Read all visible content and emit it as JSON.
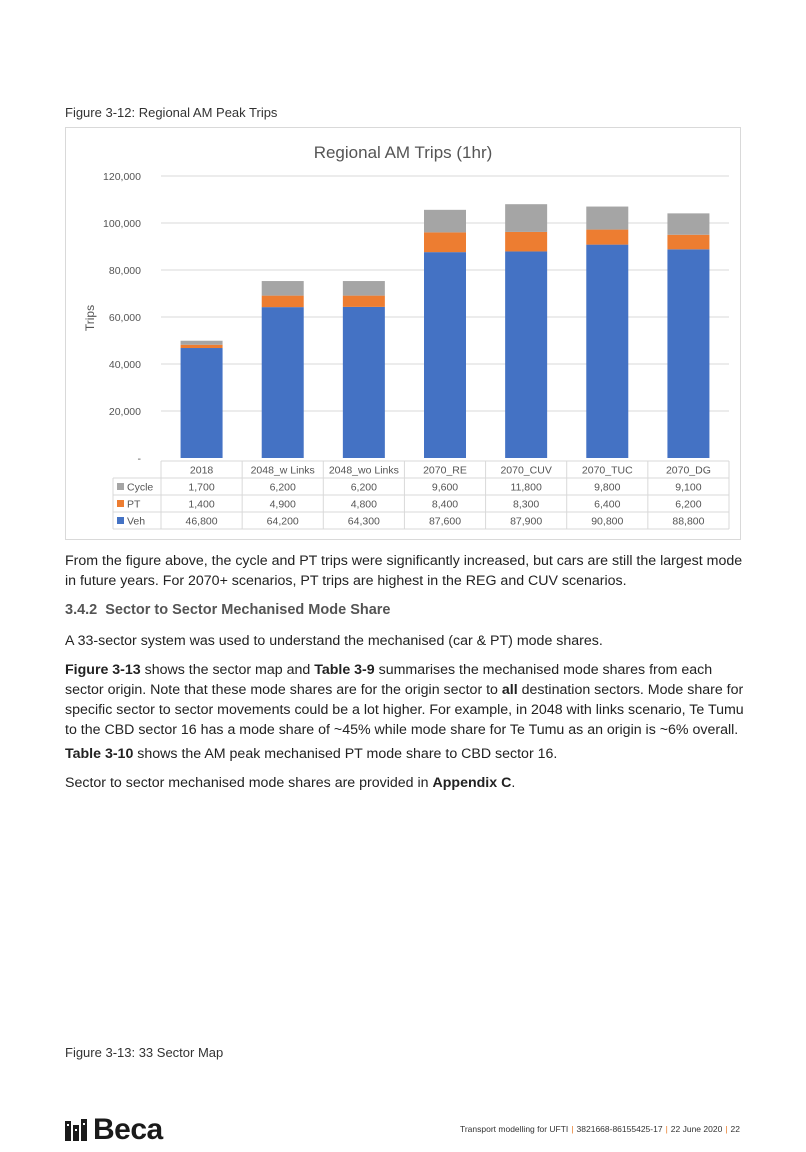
{
  "figure_caption": "Figure 3-12: Regional AM Peak Trips",
  "chart_data": {
    "type": "bar",
    "stacked": true,
    "title": "Regional AM Trips (1hr)",
    "ylabel": "Trips",
    "ylim": [
      0,
      120000
    ],
    "yticks": [
      "-",
      "20,000",
      "40,000",
      "60,000",
      "80,000",
      "100,000",
      "120,000"
    ],
    "categories": [
      "2018",
      "2048_w Links",
      "2048_wo Links",
      "2070_RE",
      "2070_CUV",
      "2070_TUC",
      "2070_DG"
    ],
    "series": [
      {
        "name": "Veh",
        "color": "#4472c4",
        "values": [
          46800,
          64200,
          64300,
          87600,
          87900,
          90800,
          88800
        ],
        "labels": [
          "46,800",
          "64,200",
          "64,300",
          "87,600",
          "87,900",
          "90,800",
          "88,800"
        ]
      },
      {
        "name": "PT",
        "color": "#ed7d31",
        "values": [
          1400,
          4900,
          4800,
          8400,
          8300,
          6400,
          6200
        ],
        "labels": [
          "1,400",
          "4,900",
          "4,800",
          "8,400",
          "8,300",
          "6,400",
          "6,200"
        ]
      },
      {
        "name": "Cycle",
        "color": "#a5a5a5",
        "values": [
          1700,
          6200,
          6200,
          9600,
          11800,
          9800,
          9100
        ],
        "labels": [
          "1,700",
          "6,200",
          "6,200",
          "9,600",
          "11,800",
          "9,800",
          "9,100"
        ]
      }
    ],
    "table_row_order": [
      "Cycle",
      "PT",
      "Veh"
    ],
    "gridlines": true,
    "legend": "data-table"
  },
  "paragraphs": {
    "p1": "From the figure above, the cycle and PT trips were significantly increased, but cars are still the largest mode in future years. For 2070+ scenarios, PT trips are highest in the REG and CUV scenarios.",
    "heading_num": "3.4.2",
    "heading_text": "Sector to Sector Mechanised Mode Share",
    "p2": "A 33-sector system was used to understand the mechanised (car & PT) mode shares.",
    "p3_b1": "Figure 3-13",
    "p3_t1": " shows the sector map and ",
    "p3_b2": "Table 3-9",
    "p3_t2": " summarises the mechanised mode shares from each sector origin. Note that these mode shares are for the origin sector to ",
    "p3_b3": "all",
    "p3_t3": " destination sectors. Mode share for specific sector to sector movements could be a lot higher. For example, in 2048 with links scenario, Te Tumu to the CBD sector 16 has a mode share of ~45% while mode share for Te Tumu as an origin is ~6% overall.",
    "p4_b1": "Table 3-10",
    "p4_t1": " shows the AM peak mechanised PT mode share to CBD sector 16.",
    "p5_t1": "Sector to sector mechanised mode shares are provided in ",
    "p5_b1": "Appendix C",
    "p5_t2": "."
  },
  "figure13_caption": "Figure 3-13: 33 Sector Map",
  "logo_text": "Beca",
  "footer": {
    "doc": "Transport modelling for UFTI",
    "ref": "3821668-86155425-17",
    "date": "22 June 2020",
    "page": "22"
  }
}
